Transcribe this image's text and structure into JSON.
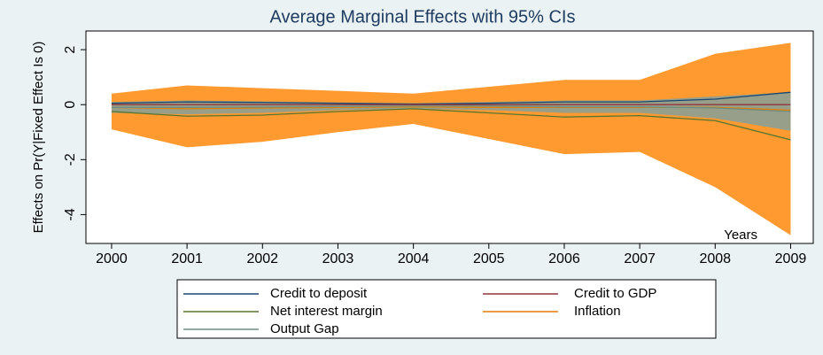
{
  "chart_data": {
    "type": "line",
    "title": "Average Marginal Effects with 95% CIs",
    "y_label": "Effects on Pr(Y|Fixed Effect Is 0)",
    "x_label": "Years",
    "x": [
      2000,
      2001,
      2002,
      2003,
      2004,
      2005,
      2006,
      2007,
      2008,
      2009
    ],
    "xlim": [
      1999.66,
      2009.3
    ],
    "xticks": [
      2000,
      2001,
      2002,
      2003,
      2004,
      2005,
      2006,
      2007,
      2008,
      2009
    ],
    "ylim": [
      -5.05,
      2.68
    ],
    "yticks": [
      -4,
      -2,
      0,
      2
    ],
    "legend": "bottom",
    "series": [
      {
        "name": "Credit to deposit",
        "color": "#1a476f",
        "values": [
          0.05,
          0.1,
          0.08,
          0.05,
          0.02,
          0.05,
          0.1,
          0.1,
          0.2,
          0.45
        ]
      },
      {
        "name": "Credit to GDP",
        "color": "#90353b",
        "values": [
          0,
          0,
          0,
          0,
          0,
          0,
          0,
          0,
          0,
          0
        ]
      },
      {
        "name": "Net interest margin",
        "color": "#55752f",
        "values": [
          -0.25,
          -0.42,
          -0.38,
          -0.25,
          -0.15,
          -0.3,
          -0.45,
          -0.4,
          -0.58,
          -1.28
        ]
      },
      {
        "name": "Inflation",
        "color": "#e37e00",
        "band_color": "#ff9a30",
        "values": [
          -0.1,
          -0.15,
          -0.12,
          -0.1,
          -0.08,
          -0.1,
          -0.1,
          -0.1,
          -0.1,
          -0.2
        ],
        "upper": [
          0.4,
          0.7,
          0.6,
          0.5,
          0.4,
          0.65,
          0.9,
          0.9,
          1.85,
          2.25
        ],
        "lower": [
          -0.9,
          -1.55,
          -1.35,
          -1.0,
          -0.7,
          -1.25,
          -1.8,
          -1.72,
          -3.0,
          -4.75
        ]
      },
      {
        "name": "Output Gap",
        "color": "#6e8e84",
        "band_color": "#85a09a",
        "values": [
          -0.1,
          -0.1,
          -0.09,
          -0.07,
          -0.05,
          -0.05,
          -0.08,
          -0.08,
          -0.12,
          -0.25
        ],
        "upper": [
          0.1,
          0.15,
          0.12,
          0.08,
          0.05,
          0.1,
          0.15,
          0.15,
          0.3,
          0.45
        ],
        "lower": [
          -0.3,
          -0.35,
          -0.3,
          -0.2,
          -0.15,
          -0.2,
          -0.3,
          -0.3,
          -0.5,
          -0.95
        ]
      }
    ]
  }
}
